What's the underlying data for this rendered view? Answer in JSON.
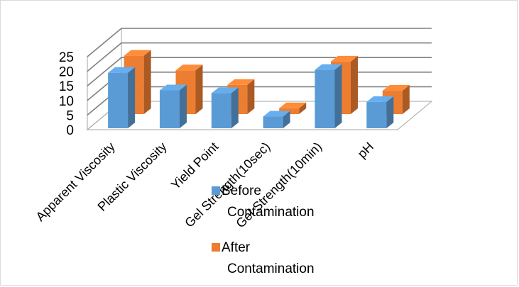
{
  "chart_data": {
    "type": "bar",
    "categories": [
      "Apparent Viscosity",
      "Plastic Viscosity",
      "Yield Point",
      "Gel Strength(10sec)",
      "Gel Strength(10min)",
      "pH"
    ],
    "series": [
      {
        "name": "Before Contamination",
        "values": [
          19,
          13,
          12,
          4,
          20,
          9
        ]
      },
      {
        "name": "After Contamination",
        "values": [
          20,
          15,
          10,
          2,
          18,
          8
        ]
      }
    ],
    "ylim": [
      0,
      25
    ],
    "yticks": [
      0,
      5,
      10,
      15,
      20,
      25
    ],
    "grid": true,
    "legend_position": "bottom-right",
    "colors": {
      "Before Contamination": "#5b9bd5",
      "After Contamination": "#ed7d31"
    }
  }
}
